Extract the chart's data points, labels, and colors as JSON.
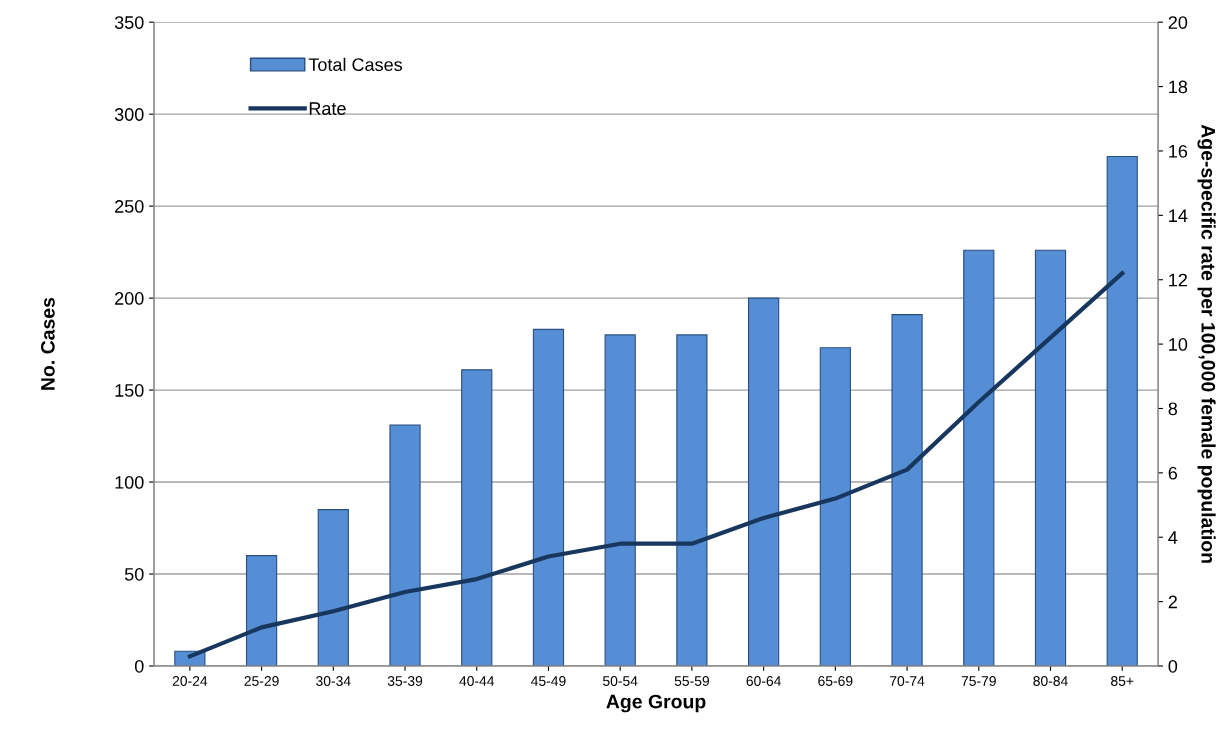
{
  "chart_data": {
    "type": "bar",
    "xlabel": "Age Group",
    "ylabel": "No. Cases",
    "y2label": "Age-specific rate per 100,000 female population",
    "categories": [
      "20-24",
      "25-29",
      "30-34",
      "35-39",
      "40-44",
      "45-49",
      "50-54",
      "55-59",
      "60-64",
      "65-69",
      "70-74",
      "75-79",
      "80-84",
      "85+"
    ],
    "series": [
      {
        "name": "Total Cases",
        "color": "#558ed5",
        "values": [
          8,
          60,
          85,
          131,
          161,
          183,
          180,
          180,
          200,
          173,
          191,
          226,
          226,
          277
        ]
      },
      {
        "name": "Rate",
        "type": "line",
        "axis": "y2",
        "color": "#17375e",
        "values": [
          0.3,
          1.2,
          1.7,
          2.3,
          2.7,
          3.4,
          3.8,
          3.8,
          4.6,
          5.2,
          6.1,
          8.2,
          10.2,
          12.2
        ]
      }
    ],
    "ylim": [
      0,
      350
    ],
    "yticks": [
      0,
      50,
      100,
      150,
      200,
      250,
      300,
      350
    ],
    "y2lim": [
      0,
      20
    ],
    "y2ticks": [
      0,
      2,
      4,
      6,
      8,
      10,
      12,
      14,
      16,
      18,
      20
    ],
    "grid": "y",
    "legend": "top left"
  }
}
